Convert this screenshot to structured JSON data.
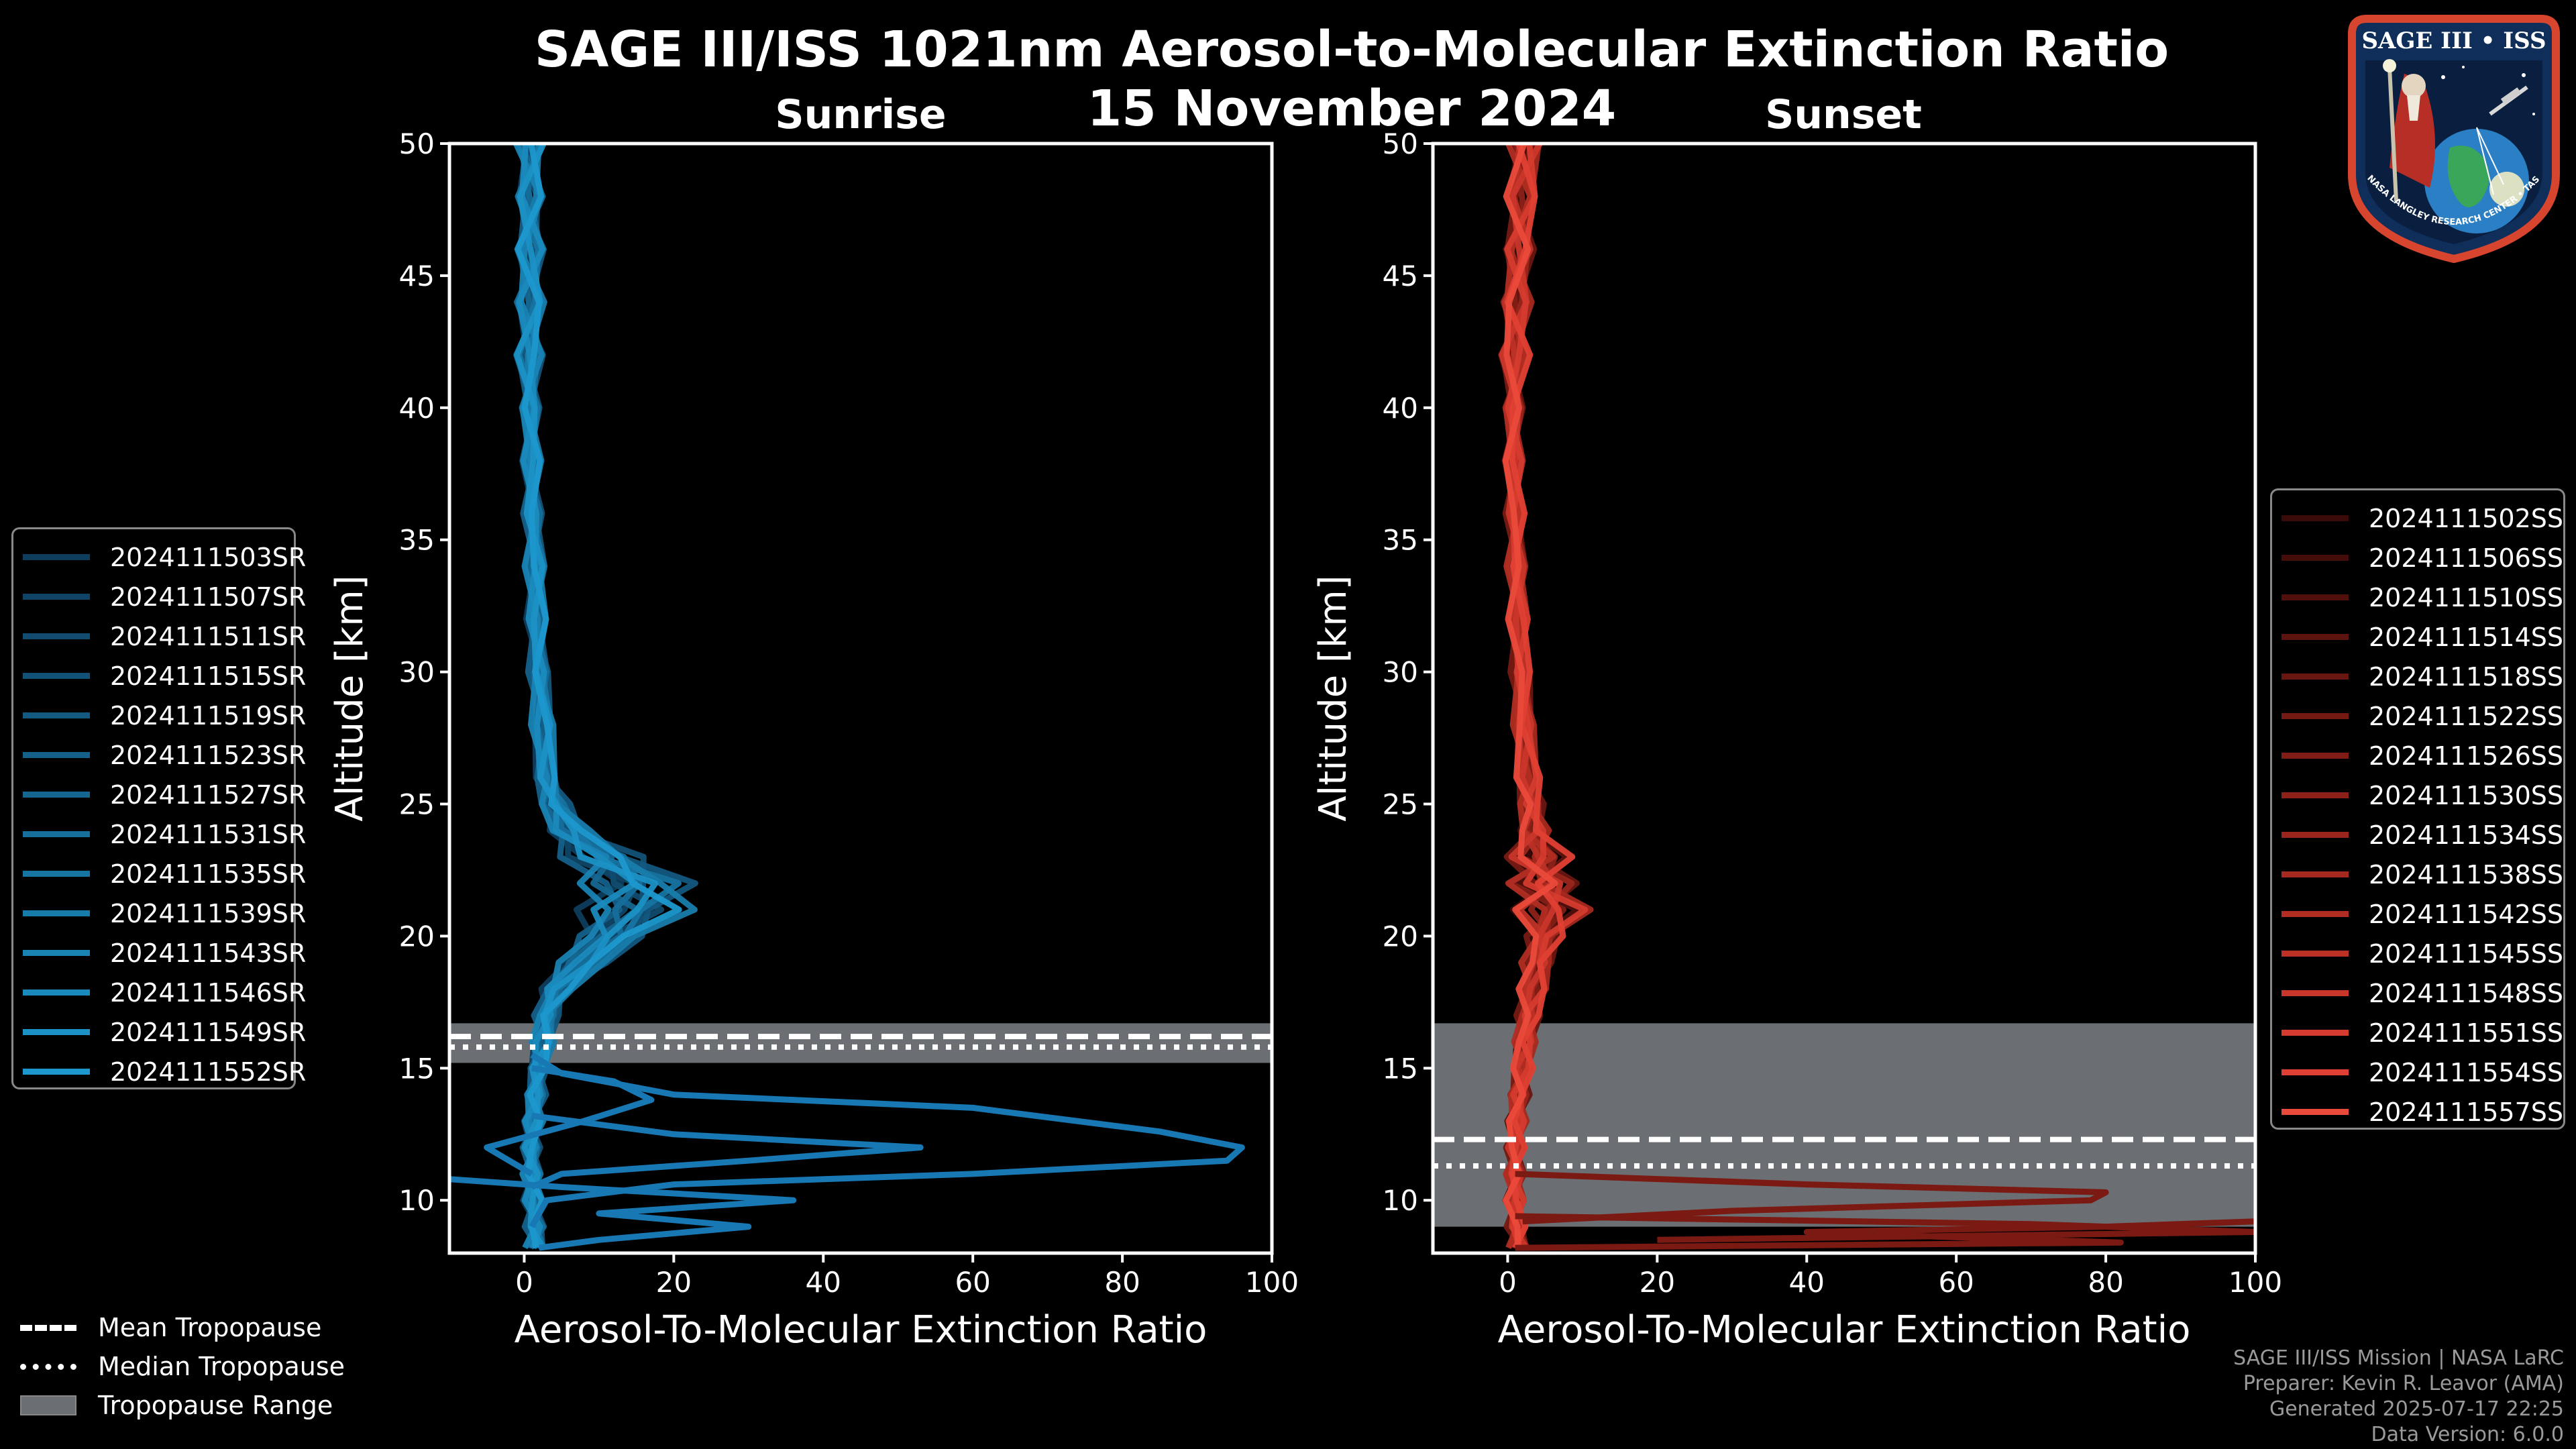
{
  "header": {
    "title": "SAGE III/ISS 1021nm Aerosol-to-Molecular Extinction Ratio",
    "date": "15 November 2024"
  },
  "logo": {
    "text": "SAGE III • ISS",
    "ring_text": "BALL • NASA LANGLEY RESEARCH CENTER • TAS-I • ESA"
  },
  "credits": {
    "line1": "SAGE III/ISS Mission | NASA LaRC",
    "line2": "Preparer: Kevin R. Leavor (AMA)",
    "line3": "Generated 2025-07-17 22:25",
    "line4": "Data Version: 6.0.0"
  },
  "legend_bottom": {
    "mean": "Mean Tropopause",
    "median": "Median Tropopause",
    "range": "Tropopause Range"
  },
  "colors": {
    "sunrise": "#1b8fd6",
    "sunset": "#e9553f",
    "tropopause_range": "#6b6e72"
  },
  "chart_data": [
    {
      "type": "line",
      "title": "Sunrise",
      "xlabel": "Aerosol-To-Molecular Extinction Ratio",
      "ylabel": "Altitude [km]",
      "xlim": [
        -10,
        100
      ],
      "ylim": [
        8,
        50
      ],
      "xticks": [
        0,
        20,
        40,
        60,
        80,
        100
      ],
      "yticks": [
        10,
        15,
        20,
        25,
        30,
        35,
        40,
        45,
        50
      ],
      "tropopause": {
        "mean": 16.2,
        "median": 15.8,
        "range": [
          15.2,
          16.7
        ]
      },
      "legend": [
        "2024111503SR",
        "2024111507SR",
        "2024111511SR",
        "2024111515SR",
        "2024111519SR",
        "2024111523SR",
        "2024111527SR",
        "2024111531SR",
        "2024111535SR",
        "2024111539SR",
        "2024111543SR",
        "2024111546SR",
        "2024111549SR",
        "2024111552SR"
      ],
      "series_colors": [
        "#0e3d5e",
        "#104466",
        "#114b6f",
        "#125277",
        "#135980",
        "#146089",
        "#156791",
        "#166e9a",
        "#1775a3",
        "#187cab",
        "#1983b4",
        "#1a8abd",
        "#1b91c5",
        "#1c98ce"
      ],
      "profile": {
        "alt": [
          8.2,
          9,
          10,
          11,
          12,
          13,
          14,
          15,
          16,
          17,
          18,
          19,
          20,
          21,
          22,
          23,
          24,
          25,
          26,
          28,
          30,
          32,
          34,
          36,
          38,
          40,
          42,
          44,
          46,
          48,
          50
        ],
        "ratio": [
          1.5,
          1.5,
          1.2,
          1.0,
          1.0,
          1.2,
          1.5,
          2.0,
          2.5,
          3.0,
          4.5,
          8.0,
          12.0,
          15.0,
          15.0,
          11.0,
          6.0,
          4.0,
          3.0,
          2.5,
          2.0,
          1.7,
          1.5,
          1.2,
          1.0,
          0.8,
          0.8,
          0.8,
          0.8,
          0.8,
          0.8
        ]
      },
      "spikes": [
        {
          "name": "2024111546SR",
          "alt": [
            15.5,
            14.8,
            14.0,
            13.5,
            12.6,
            12.0,
            11.5,
            11.0,
            10.6,
            10.0,
            9.0
          ],
          "ratio": [
            1.0,
            5.0,
            20.0,
            60.0,
            85.0,
            96.0,
            94.0,
            60.0,
            20.0,
            3.0,
            1.0
          ]
        },
        {
          "name": "2024111531SR",
          "alt": [
            13.2,
            12.5,
            12.0,
            11.5,
            11.0,
            10.5
          ],
          "ratio": [
            1.0,
            20.0,
            53.0,
            30.0,
            5.0,
            1.0
          ]
        },
        {
          "name": "2024111523SR",
          "alt": [
            10.8,
            10.5,
            10.0,
            9.5,
            9.0,
            8.5,
            8.2
          ],
          "ratio": [
            -10.0,
            5.0,
            36.0,
            10.0,
            30.0,
            10.0,
            2.0
          ]
        },
        {
          "name": "2024111539SR",
          "alt": [
            15.0,
            14.5,
            13.8,
            13.0,
            12.0,
            11.0
          ],
          "ratio": [
            1.0,
            12.0,
            17.0,
            8.0,
            -5.0,
            1.0
          ]
        }
      ]
    },
    {
      "type": "line",
      "title": "Sunset",
      "xlabel": "Aerosol-To-Molecular Extinction Ratio",
      "ylabel": "Altitude [km]",
      "xlim": [
        -10,
        100
      ],
      "ylim": [
        8,
        50
      ],
      "xticks": [
        0,
        20,
        40,
        60,
        80,
        100
      ],
      "yticks": [
        10,
        15,
        20,
        25,
        30,
        35,
        40,
        45,
        50
      ],
      "tropopause": {
        "mean": 12.3,
        "median": 11.3,
        "range": [
          9.0,
          16.7
        ]
      },
      "legend": [
        "2024111502SS",
        "2024111506SS",
        "2024111510SS",
        "2024111514SS",
        "2024111518SS",
        "2024111522SS",
        "2024111526SS",
        "2024111530SS",
        "2024111534SS",
        "2024111538SS",
        "2024111542SS",
        "2024111545SS",
        "2024111548SS",
        "2024111551SS",
        "2024111554SS",
        "2024111557SS"
      ],
      "series_colors": [
        "#3a0a08",
        "#450d0a",
        "#51100c",
        "#5d130e",
        "#691610",
        "#751a13",
        "#811d16",
        "#8d2119",
        "#99251c",
        "#a5291f",
        "#b12d22",
        "#bd3126",
        "#c9362a",
        "#d53b2e",
        "#e04033",
        "#ea4a3a"
      ],
      "profile": {
        "alt": [
          8.2,
          9,
          10,
          11,
          12,
          13,
          14,
          15,
          16,
          17,
          18,
          19,
          20,
          21,
          22,
          23,
          24,
          25,
          26,
          28,
          30,
          32,
          34,
          36,
          38,
          40,
          42,
          44,
          46,
          48,
          50
        ],
        "ratio": [
          1.5,
          1.2,
          1.0,
          1.0,
          1.0,
          1.2,
          1.5,
          2.0,
          2.3,
          2.8,
          3.5,
          4.0,
          5.0,
          6.0,
          4.5,
          4.0,
          3.5,
          3.0,
          2.8,
          2.2,
          1.8,
          1.5,
          1.2,
          1.0,
          0.8,
          0.8,
          1.0,
          1.2,
          1.5,
          2.0,
          2.5
        ]
      },
      "spikes": [
        {
          "name": "2024111506SS",
          "alt": [
            11.0,
            10.6,
            10.3,
            10.0,
            9.6,
            9.2
          ],
          "ratio": [
            1.0,
            40.0,
            80.0,
            78.0,
            30.0,
            2.0
          ]
        },
        {
          "name": "2024111514SS",
          "alt": [
            9.2,
            9.0,
            8.8,
            8.6,
            8.4,
            8.2
          ],
          "ratio": [
            100.0,
            80.0,
            40.0,
            60.0,
            82.0,
            1.0
          ]
        },
        {
          "name": "2024111510SS",
          "alt": [
            9.4,
            9.1,
            8.8,
            8.5
          ],
          "ratio": [
            1.0,
            70.0,
            100.0,
            20.0
          ]
        }
      ]
    }
  ]
}
